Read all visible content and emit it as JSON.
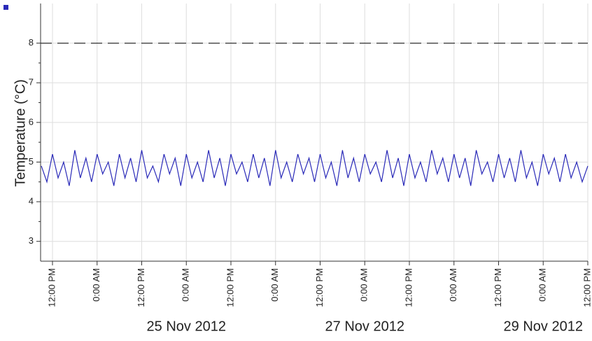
{
  "chart_data": {
    "type": "line",
    "y_label": "Temperature (°C)",
    "x": [
      9,
      10.5,
      12,
      13.5,
      15,
      16.5,
      18,
      19.5,
      21,
      22.5,
      24,
      25.5,
      27,
      28.5,
      30,
      31.5,
      33,
      34.5,
      36,
      37.5,
      39,
      40.5,
      42,
      43.5,
      45,
      46.5,
      48,
      49.5,
      51,
      52.5,
      54,
      55.5,
      57,
      58.5,
      60,
      61.5,
      63,
      64.5,
      66,
      67.5,
      69,
      70.5,
      72,
      73.5,
      75,
      76.5,
      78,
      79.5,
      81,
      82.5,
      84,
      85.5,
      87,
      88.5,
      90,
      91.5,
      93,
      94.5,
      96,
      97.5,
      99,
      100.5,
      102,
      103.5,
      105,
      106.5,
      108,
      109.5,
      111,
      112.5,
      114,
      115.5,
      117,
      118.5,
      120,
      121.5,
      123,
      124.5,
      126,
      127.5,
      129,
      130.5,
      132,
      133.5,
      135,
      136.5,
      138,
      139.5,
      141,
      142.5,
      144,
      145.5,
      147,
      148.5,
      150,
      151.5,
      153,
      154.5,
      156
    ],
    "series": [
      {
        "color": "#2a2ab8",
        "values": [
          4.9,
          4.5,
          5.2,
          4.6,
          5.0,
          4.4,
          5.3,
          4.6,
          5.1,
          4.5,
          5.2,
          4.7,
          5.0,
          4.4,
          5.2,
          4.6,
          5.1,
          4.5,
          5.3,
          4.6,
          4.9,
          4.5,
          5.2,
          4.7,
          5.1,
          4.4,
          5.2,
          4.6,
          5.0,
          4.5,
          5.3,
          4.6,
          5.1,
          4.4,
          5.2,
          4.7,
          5.0,
          4.5,
          5.2,
          4.6,
          5.1,
          4.4,
          5.3,
          4.6,
          5.0,
          4.5,
          5.2,
          4.7,
          5.1,
          4.5,
          5.2,
          4.6,
          5.0,
          4.4,
          5.3,
          4.6,
          5.1,
          4.5,
          5.2,
          4.7,
          5.0,
          4.5,
          5.3,
          4.6,
          5.1,
          4.4,
          5.2,
          4.6,
          5.0,
          4.5,
          5.3,
          4.7,
          5.1,
          4.5,
          5.2,
          4.6,
          5.1,
          4.4,
          5.3,
          4.7,
          5.0,
          4.5,
          5.2,
          4.6,
          5.1,
          4.5,
          5.3,
          4.6,
          5.0,
          4.4,
          5.2,
          4.7,
          5.1,
          4.5,
          5.2,
          4.6,
          5.0,
          4.5,
          4.9
        ]
      }
    ],
    "reference_line": 8,
    "xlim": [
      8.8,
      156
    ],
    "xticks": [
      {
        "value": 12,
        "label": "12:00 PM"
      },
      {
        "value": 24,
        "label": "0:00 AM"
      },
      {
        "value": 36,
        "label": "12:00 PM"
      },
      {
        "value": 48,
        "label": "0:00 AM"
      },
      {
        "value": 60,
        "label": "12:00 PM"
      },
      {
        "value": 72,
        "label": "0:00 AM"
      },
      {
        "value": 84,
        "label": "12:00 PM"
      },
      {
        "value": 96,
        "label": "0:00 AM"
      },
      {
        "value": 108,
        "label": "12:00 PM"
      },
      {
        "value": 120,
        "label": "0:00 AM"
      },
      {
        "value": 132,
        "label": "12:00 PM"
      },
      {
        "value": 144,
        "label": "0:00 AM"
      },
      {
        "value": 156,
        "label": "12:00 PM"
      }
    ],
    "date_ticks": [
      {
        "value": 48,
        "label": "25 Nov 2012"
      },
      {
        "value": 96,
        "label": "27 Nov 2012"
      },
      {
        "value": 144,
        "label": "29 Nov 2012"
      }
    ],
    "ylim": [
      2.5,
      9
    ],
    "yticks": [
      3,
      4,
      5,
      6,
      7,
      8
    ],
    "grid": true
  }
}
